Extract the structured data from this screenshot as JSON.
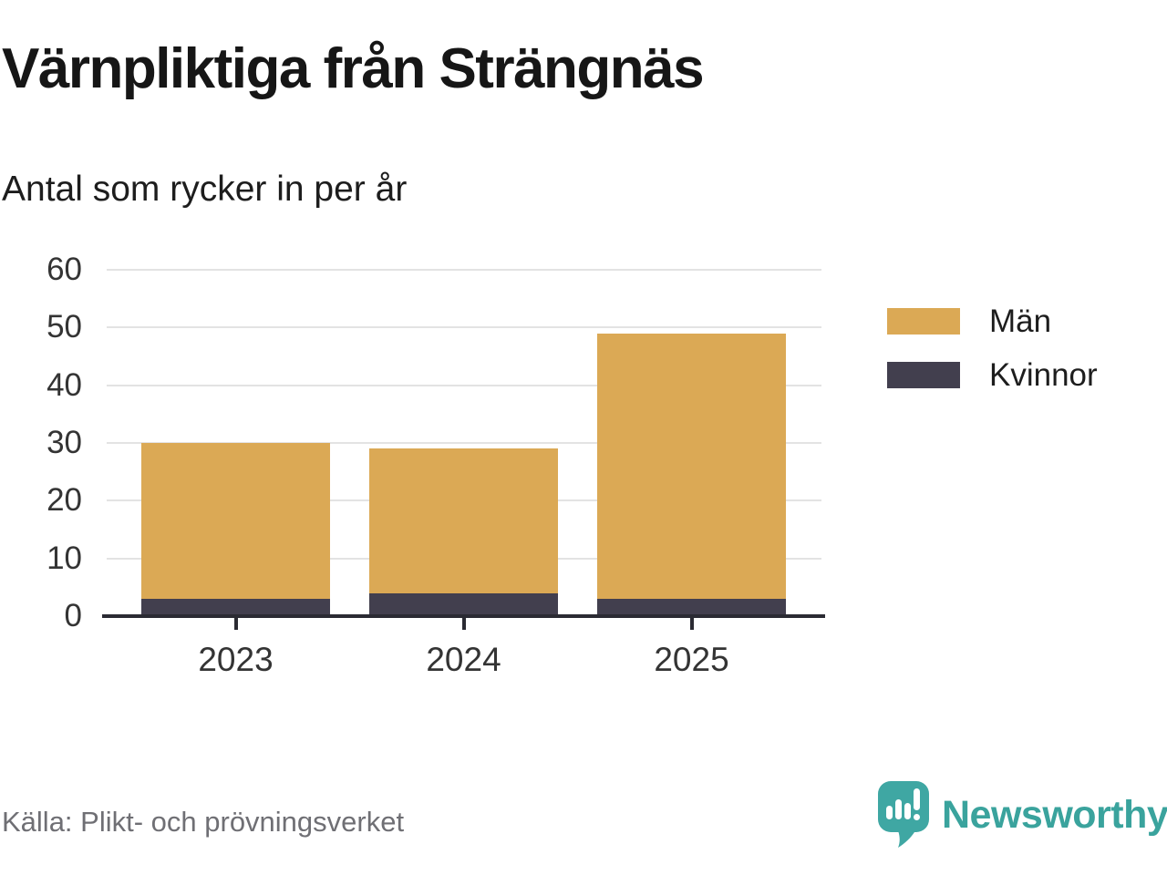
{
  "header": {
    "title": "Värnpliktiga från Strängnäs",
    "subtitle": "Antal som rycker in per år"
  },
  "footer": {
    "source": "Källa: Plikt- och prövningsverket",
    "brand": "Newsworthy"
  },
  "colors": {
    "men": "#DBA955",
    "women": "#423F4E",
    "axis": "#2B2B33",
    "grid": "#E3E3E3",
    "tick_label": "#343434",
    "source_text": "#6F6F74",
    "brand_teal": "#3AA39D",
    "background": "#FFFFFF"
  },
  "legend": [
    {
      "label": "Män",
      "color": "#DBA955"
    },
    {
      "label": "Kvinnor",
      "color": "#423F4E"
    }
  ],
  "chart_data": {
    "type": "bar",
    "stacked": true,
    "title": "Värnpliktiga från Strängnäs",
    "subtitle": "Antal som rycker in per år",
    "categories": [
      "2023",
      "2024",
      "2025"
    ],
    "series": [
      {
        "name": "Kvinnor",
        "key": "women",
        "color": "#423F4E",
        "values": [
          3,
          4,
          3
        ]
      },
      {
        "name": "Män",
        "key": "men",
        "color": "#DBA955",
        "values": [
          27,
          25,
          46
        ]
      }
    ],
    "totals": [
      30,
      29,
      49
    ],
    "ylabel": "",
    "xlabel": "",
    "ylim": [
      0,
      60
    ],
    "yticks": [
      0,
      10,
      20,
      30,
      40,
      50,
      60
    ],
    "grid": "horizontal",
    "legend_position": "right",
    "legend_order": [
      "Män",
      "Kvinnor"
    ]
  }
}
